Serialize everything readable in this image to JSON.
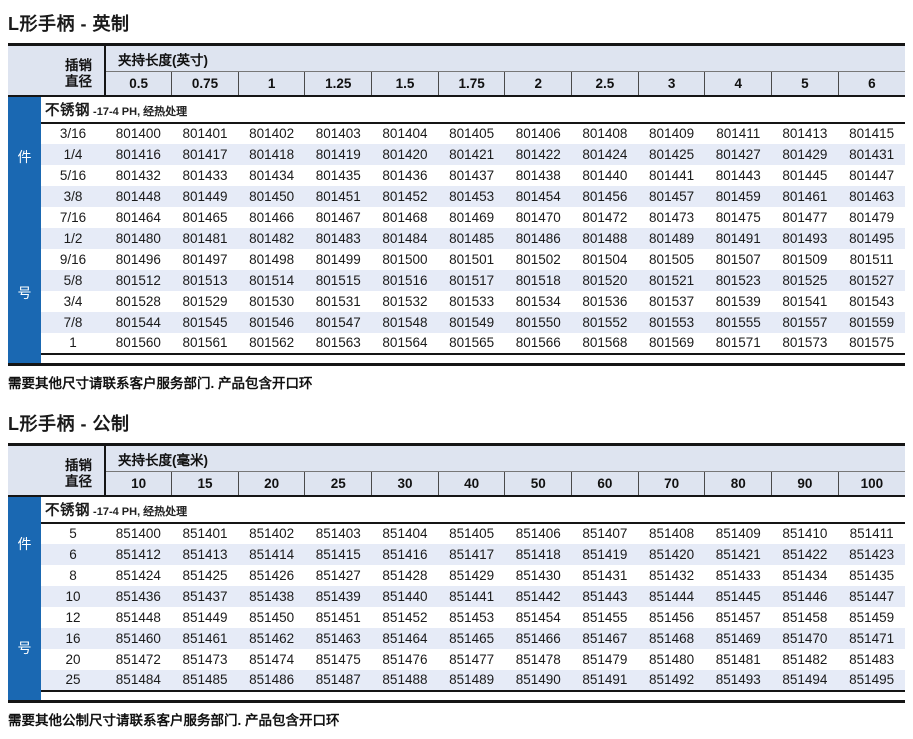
{
  "page": {
    "accent_blue": "#1a68b2",
    "header_bg": "#dee4f0",
    "stripe_bg": "#e6ebf7"
  },
  "imperial": {
    "title": "L形手柄 - 英制",
    "pin_label": "插销\n直径",
    "group_header": "夹持长度(英寸)",
    "columns": [
      "0.5",
      "0.75",
      "1",
      "1.25",
      "1.5",
      "1.75",
      "2",
      "2.5",
      "3",
      "4",
      "5",
      "6"
    ],
    "material_name": "不锈钢",
    "material_note": "-17-4 PH, 经热处理",
    "side_labels": [
      "件",
      "号"
    ],
    "rows": [
      {
        "size": "3/16",
        "parts": [
          "801400",
          "801401",
          "801402",
          "801403",
          "801404",
          "801405",
          "801406",
          "801408",
          "801409",
          "801411",
          "801413",
          "801415"
        ]
      },
      {
        "size": "1/4",
        "parts": [
          "801416",
          "801417",
          "801418",
          "801419",
          "801420",
          "801421",
          "801422",
          "801424",
          "801425",
          "801427",
          "801429",
          "801431"
        ]
      },
      {
        "size": "5/16",
        "parts": [
          "801432",
          "801433",
          "801434",
          "801435",
          "801436",
          "801437",
          "801438",
          "801440",
          "801441",
          "801443",
          "801445",
          "801447"
        ]
      },
      {
        "size": "3/8",
        "parts": [
          "801448",
          "801449",
          "801450",
          "801451",
          "801452",
          "801453",
          "801454",
          "801456",
          "801457",
          "801459",
          "801461",
          "801463"
        ]
      },
      {
        "size": "7/16",
        "parts": [
          "801464",
          "801465",
          "801466",
          "801467",
          "801468",
          "801469",
          "801470",
          "801472",
          "801473",
          "801475",
          "801477",
          "801479"
        ]
      },
      {
        "size": "1/2",
        "parts": [
          "801480",
          "801481",
          "801482",
          "801483",
          "801484",
          "801485",
          "801486",
          "801488",
          "801489",
          "801491",
          "801493",
          "801495"
        ]
      },
      {
        "size": "9/16",
        "parts": [
          "801496",
          "801497",
          "801498",
          "801499",
          "801500",
          "801501",
          "801502",
          "801504",
          "801505",
          "801507",
          "801509",
          "801511"
        ]
      },
      {
        "size": "5/8",
        "parts": [
          "801512",
          "801513",
          "801514",
          "801515",
          "801516",
          "801517",
          "801518",
          "801520",
          "801521",
          "801523",
          "801525",
          "801527"
        ]
      },
      {
        "size": "3/4",
        "parts": [
          "801528",
          "801529",
          "801530",
          "801531",
          "801532",
          "801533",
          "801534",
          "801536",
          "801537",
          "801539",
          "801541",
          "801543"
        ]
      },
      {
        "size": "7/8",
        "parts": [
          "801544",
          "801545",
          "801546",
          "801547",
          "801548",
          "801549",
          "801550",
          "801552",
          "801553",
          "801555",
          "801557",
          "801559"
        ]
      },
      {
        "size": "1",
        "parts": [
          "801560",
          "801561",
          "801562",
          "801563",
          "801564",
          "801565",
          "801566",
          "801568",
          "801569",
          "801571",
          "801573",
          "801575"
        ]
      }
    ],
    "footer": "需要其他尺寸请联系客户服务部门.  产品包含开口环"
  },
  "metric": {
    "title": "L形手柄 - 公制",
    "pin_label": "插销\n直径",
    "group_header": "夹持长度(毫米)",
    "columns": [
      "10",
      "15",
      "20",
      "25",
      "30",
      "40",
      "50",
      "60",
      "70",
      "80",
      "90",
      "100"
    ],
    "material_name": "不锈钢",
    "material_note": "-17-4 PH, 经热处理",
    "side_labels": [
      "件",
      "号"
    ],
    "rows": [
      {
        "size": "5",
        "parts": [
          "851400",
          "851401",
          "851402",
          "851403",
          "851404",
          "851405",
          "851406",
          "851407",
          "851408",
          "851409",
          "851410",
          "851411"
        ]
      },
      {
        "size": "6",
        "parts": [
          "851412",
          "851413",
          "851414",
          "851415",
          "851416",
          "851417",
          "851418",
          "851419",
          "851420",
          "851421",
          "851422",
          "851423"
        ]
      },
      {
        "size": "8",
        "parts": [
          "851424",
          "851425",
          "851426",
          "851427",
          "851428",
          "851429",
          "851430",
          "851431",
          "851432",
          "851433",
          "851434",
          "851435"
        ]
      },
      {
        "size": "10",
        "parts": [
          "851436",
          "851437",
          "851438",
          "851439",
          "851440",
          "851441",
          "851442",
          "851443",
          "851444",
          "851445",
          "851446",
          "851447"
        ]
      },
      {
        "size": "12",
        "parts": [
          "851448",
          "851449",
          "851450",
          "851451",
          "851452",
          "851453",
          "851454",
          "851455",
          "851456",
          "851457",
          "851458",
          "851459"
        ]
      },
      {
        "size": "16",
        "parts": [
          "851460",
          "851461",
          "851462",
          "851463",
          "851464",
          "851465",
          "851466",
          "851467",
          "851468",
          "851469",
          "851470",
          "851471"
        ]
      },
      {
        "size": "20",
        "parts": [
          "851472",
          "851473",
          "851474",
          "851475",
          "851476",
          "851477",
          "851478",
          "851479",
          "851480",
          "851481",
          "851482",
          "851483"
        ]
      },
      {
        "size": "25",
        "parts": [
          "851484",
          "851485",
          "851486",
          "851487",
          "851488",
          "851489",
          "851490",
          "851491",
          "851492",
          "851493",
          "851494",
          "851495"
        ]
      }
    ],
    "footer": "需要其他公制尺寸请联系客户服务部门.  产品包含开口环"
  }
}
